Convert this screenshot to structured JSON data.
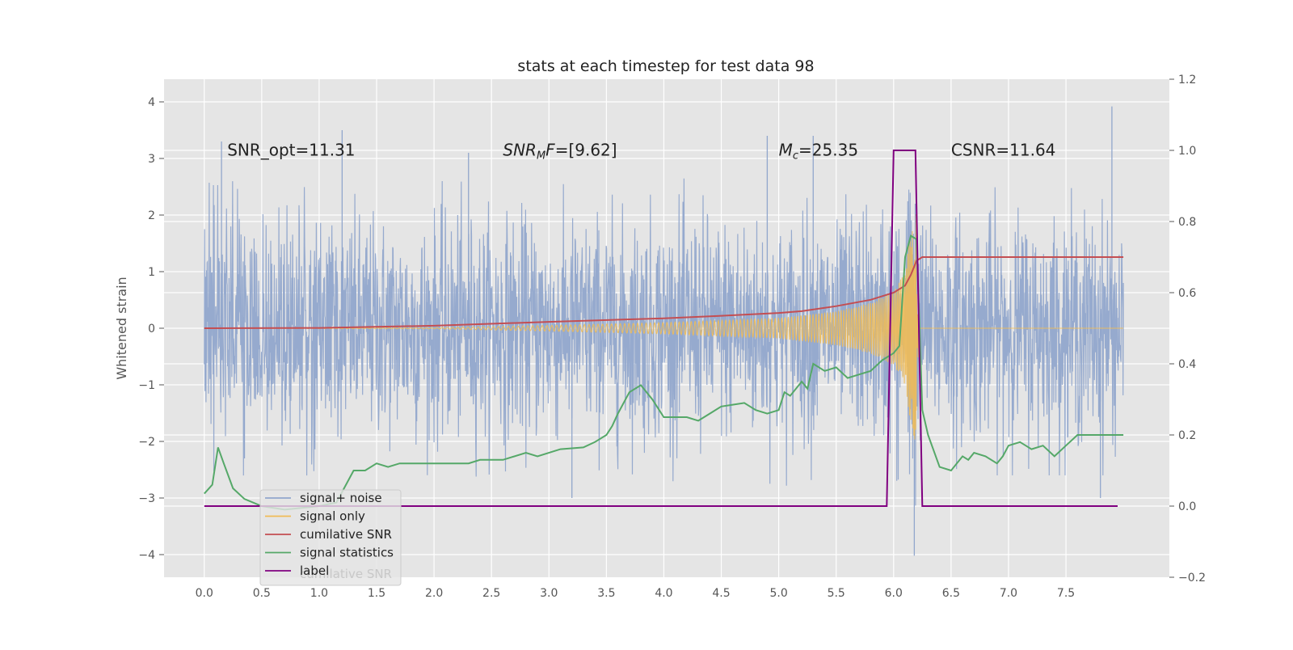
{
  "chart_data": {
    "type": "line",
    "title": "stats at each timestep for test data 98",
    "ylabel": "Whitened strain",
    "xlabel": "",
    "xlim": [
      -0.35,
      8.4
    ],
    "ylim": [
      -4.4,
      4.4
    ],
    "y2lim": [
      -0.2,
      1.2
    ],
    "x_ticks": [
      0.0,
      0.5,
      1.0,
      1.5,
      2.0,
      2.5,
      3.0,
      3.5,
      4.0,
      4.5,
      5.0,
      5.5,
      6.0,
      6.5,
      7.0,
      7.5
    ],
    "x_tick_labels": [
      "0.0",
      "0.5",
      "1.0",
      "1.5",
      "2.0",
      "2.5",
      "3.0",
      "3.5",
      "4.0",
      "4.5",
      "5.0",
      "5.5",
      "6.0",
      "6.5",
      "7.0",
      "7.5"
    ],
    "y_ticks": [
      4,
      3,
      2,
      1,
      0,
      -1,
      -2,
      -3,
      -4
    ],
    "y_tick_labels": [
      "4",
      "3",
      "2",
      "1",
      "0",
      "−1",
      "−2",
      "−3",
      "−4"
    ],
    "y2_ticks": [
      1.2,
      1.0,
      0.8,
      0.6,
      0.4,
      0.2,
      0.0,
      -0.2
    ],
    "y2_tick_labels": [
      "1.2",
      "1.0",
      "0.8",
      "0.6",
      "0.4",
      "0.2",
      "0.0",
      "−0.2"
    ],
    "annotations": [
      {
        "id": "snr-opt",
        "text": "SNR_opt=11.31",
        "x": 0.2,
        "y": 3.15
      },
      {
        "id": "snr-mf",
        "text": "SNR_MF=[9.62]",
        "x": 2.6,
        "y": 3.15
      },
      {
        "id": "mc",
        "text": "M_c=25.35",
        "x": 5.0,
        "y": 3.15
      },
      {
        "id": "csnr",
        "text": "CSNR=11.64",
        "x": 6.5,
        "y": 3.15
      }
    ],
    "legend": {
      "position": "lower-left",
      "entries": [
        "signal+ noise",
        "signal only",
        "cumilative SNR",
        "signal statistics",
        "label"
      ],
      "ghost_text": "cumilative SNR"
    },
    "series": [
      {
        "name": "signal+ noise",
        "axis": "left",
        "color": "#91a6cc",
        "kind": "noise",
        "t_start": 0.0,
        "t_end": 8.0,
        "envelope": 1.8,
        "peak_max": 3.92,
        "peak_min": -4.02
      },
      {
        "name": "signal only",
        "axis": "left",
        "color": "#f0bb57",
        "kind": "chirp",
        "envelope_points": [
          [
            0.0,
            0.0
          ],
          [
            2.0,
            0.01
          ],
          [
            3.0,
            0.05
          ],
          [
            4.0,
            0.1
          ],
          [
            5.0,
            0.18
          ],
          [
            5.5,
            0.3
          ],
          [
            5.8,
            0.45
          ],
          [
            6.0,
            0.65
          ],
          [
            6.1,
            1.0
          ],
          [
            6.15,
            1.7
          ],
          [
            6.2,
            2.1
          ],
          [
            6.22,
            0.0
          ],
          [
            8.0,
            0.0
          ]
        ]
      },
      {
        "name": "cumilative SNR",
        "axis": "right",
        "color": "#c44e52",
        "x": [
          0.0,
          1.0,
          2.0,
          3.0,
          4.0,
          4.5,
          5.0,
          5.2,
          5.5,
          5.8,
          6.0,
          6.1,
          6.15,
          6.2,
          6.25,
          7.0,
          8.0
        ],
        "y": [
          0.5,
          0.501,
          0.507,
          0.518,
          0.528,
          0.535,
          0.543,
          0.548,
          0.562,
          0.58,
          0.6,
          0.62,
          0.65,
          0.69,
          0.7,
          0.7,
          0.7
        ]
      },
      {
        "name": "signal statistics",
        "axis": "right",
        "color": "#55a868",
        "x": [
          0.0,
          0.07,
          0.12,
          0.17,
          0.25,
          0.35,
          0.5,
          0.7,
          1.0,
          1.15,
          1.2,
          1.3,
          1.4,
          1.5,
          1.6,
          1.7,
          2.0,
          2.3,
          2.4,
          2.6,
          2.8,
          2.9,
          3.1,
          3.3,
          3.4,
          3.5,
          3.55,
          3.6,
          3.65,
          3.7,
          3.8,
          3.9,
          4.0,
          4.2,
          4.3,
          4.4,
          4.5,
          4.6,
          4.7,
          4.8,
          4.9,
          5.0,
          5.05,
          5.1,
          5.2,
          5.25,
          5.3,
          5.4,
          5.5,
          5.6,
          5.7,
          5.8,
          5.9,
          6.0,
          6.05,
          6.1,
          6.15,
          6.2,
          6.25,
          6.3,
          6.4,
          6.5,
          6.6,
          6.65,
          6.7,
          6.8,
          6.9,
          6.95,
          7.0,
          7.1,
          7.2,
          7.3,
          7.4,
          7.5,
          7.6,
          7.7,
          7.8,
          7.9,
          8.0
        ],
        "y": [
          0.035,
          0.06,
          0.165,
          0.12,
          0.05,
          0.02,
          0.0,
          -0.01,
          0.0,
          0.01,
          0.04,
          0.1,
          0.1,
          0.12,
          0.11,
          0.12,
          0.12,
          0.12,
          0.13,
          0.13,
          0.15,
          0.14,
          0.16,
          0.165,
          0.18,
          0.2,
          0.225,
          0.26,
          0.29,
          0.32,
          0.34,
          0.3,
          0.25,
          0.25,
          0.24,
          0.26,
          0.28,
          0.285,
          0.29,
          0.27,
          0.26,
          0.27,
          0.32,
          0.31,
          0.35,
          0.33,
          0.4,
          0.38,
          0.39,
          0.36,
          0.37,
          0.38,
          0.41,
          0.43,
          0.45,
          0.7,
          0.76,
          0.75,
          0.27,
          0.2,
          0.11,
          0.1,
          0.14,
          0.13,
          0.15,
          0.14,
          0.12,
          0.14,
          0.17,
          0.18,
          0.16,
          0.17,
          0.14,
          0.17,
          0.2,
          0.2,
          0.2,
          0.2,
          0.2
        ]
      },
      {
        "name": "label",
        "axis": "right",
        "color": "#800080",
        "x": [
          0.0,
          5.94,
          6.0,
          6.19,
          6.25,
          7.95
        ],
        "y": [
          0.0,
          0.0,
          1.0,
          1.0,
          0.0,
          0.0
        ]
      }
    ]
  }
}
